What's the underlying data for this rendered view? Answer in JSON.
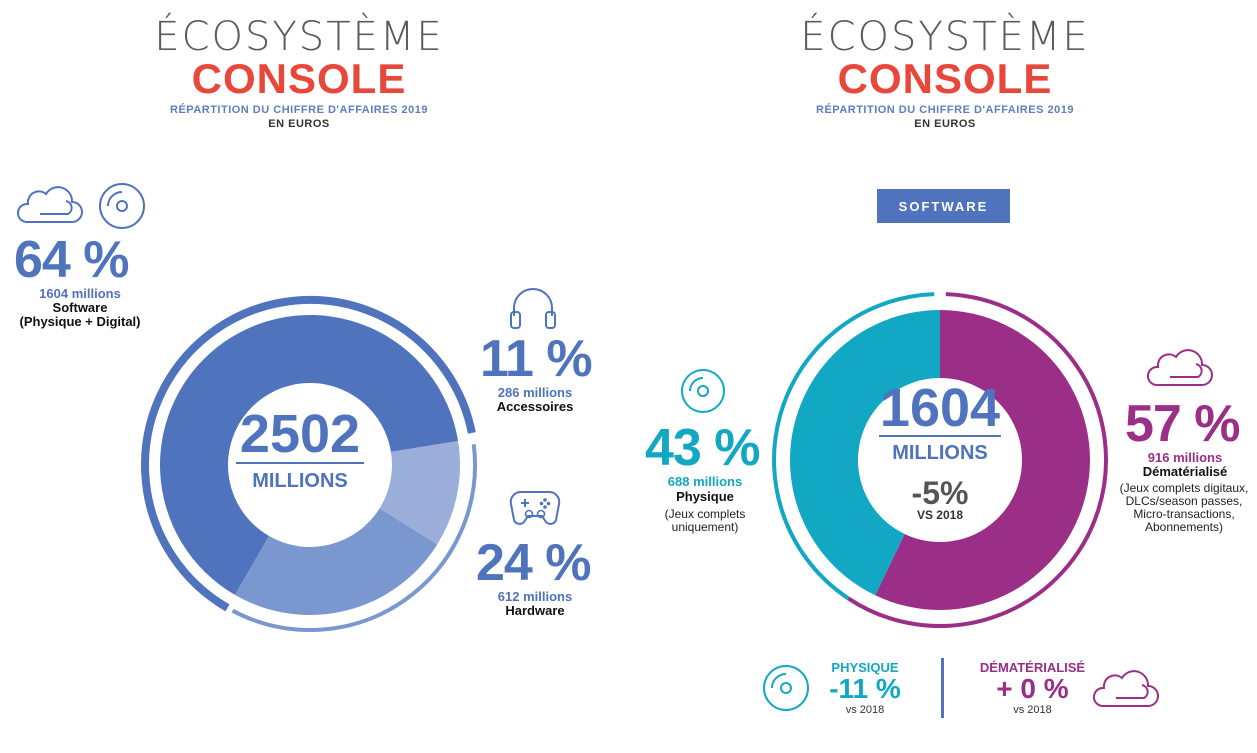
{
  "left_header": {
    "title_line1": "ÉCOSYSTÈME",
    "title_line2": "CONSOLE",
    "subtitle_line1": "RÉPARTITION DU CHIFFRE D'AFFAIRES 2019",
    "subtitle_line2": "EN EUROS"
  },
  "right_header": {
    "title_line1": "ÉCOSYSTÈME",
    "title_line2": "CONSOLE",
    "subtitle_line1": "RÉPARTITION DU CHIFFRE D'AFFAIRES 2019",
    "subtitle_line2": "EN EUROS"
  },
  "left_chart": {
    "center_value": "2502",
    "center_unit": "MILLIONS",
    "segments": [
      {
        "pct": "64 %",
        "millions": "1604 millions",
        "label": "Software",
        "note": "(Physique + Digital)",
        "icon": "cloud-icon, disc-icon"
      },
      {
        "pct": "11 %",
        "millions": "286 millions",
        "label": "Accessoires",
        "icon": "headphones-icon"
      },
      {
        "pct": "24 %",
        "millions": "612 millions",
        "label": "Hardware",
        "icon": "gamepad-icon"
      }
    ]
  },
  "right_chart": {
    "badge": "SOFTWARE",
    "center_value": "1604",
    "center_unit": "MILLIONS",
    "center_change": "-5%",
    "center_change_ref": "VS 2018",
    "physique": {
      "pct": "43 %",
      "millions": "688 millions",
      "label": "Physique",
      "note_line1": "(Jeux complets",
      "note_line2": "uniquement)"
    },
    "dematerialise": {
      "pct": "57 %",
      "millions": "916 millions",
      "label": "Dématérialisé",
      "note_line1": "(Jeux complets digitaux,",
      "note_line2": "DLCs/season passes,",
      "note_line3": "Micro-transactions,",
      "note_line4": "Abonnements)"
    }
  },
  "bottom": {
    "physique_title": "PHYSIQUE",
    "physique_change": "-11 %",
    "physique_ref": "vs 2018",
    "demat_title": "DÉMATÉRIALISÉ",
    "demat_change": "+ 0 %",
    "demat_ref": "vs 2018"
  },
  "colors": {
    "software": "#4f73bd",
    "hardware": "#7a98cf",
    "accessoires": "#9aaed9",
    "physique": "#12a8c4",
    "dematerialise": "#9b2f88",
    "title_red": "#e8473a"
  },
  "chart_data": [
    {
      "type": "pie",
      "title": "ÉCOSYSTÈME CONSOLE",
      "subtitle": "RÉPARTITION DU CHIFFRE D'AFFAIRES 2019 EN EUROS",
      "total": 2502,
      "unit": "millions",
      "categories": [
        "Software",
        "Accessoires",
        "Hardware"
      ],
      "values": [
        1604,
        286,
        612
      ],
      "percentages": [
        64,
        11,
        24
      ]
    },
    {
      "type": "pie",
      "title": "ÉCOSYSTÈME CONSOLE",
      "subtitle": "RÉPARTITION DU CHIFFRE D'AFFAIRES 2019 EN EUROS",
      "total": 1604,
      "unit": "millions",
      "categories": [
        "Physique",
        "Dématérialisé"
      ],
      "values": [
        688,
        916
      ],
      "percentages": [
        43,
        57
      ],
      "change_vs_2018": {
        "Total": "-5%",
        "Physique": "-11 %",
        "Dématérialisé": "+ 0 %"
      }
    }
  ]
}
